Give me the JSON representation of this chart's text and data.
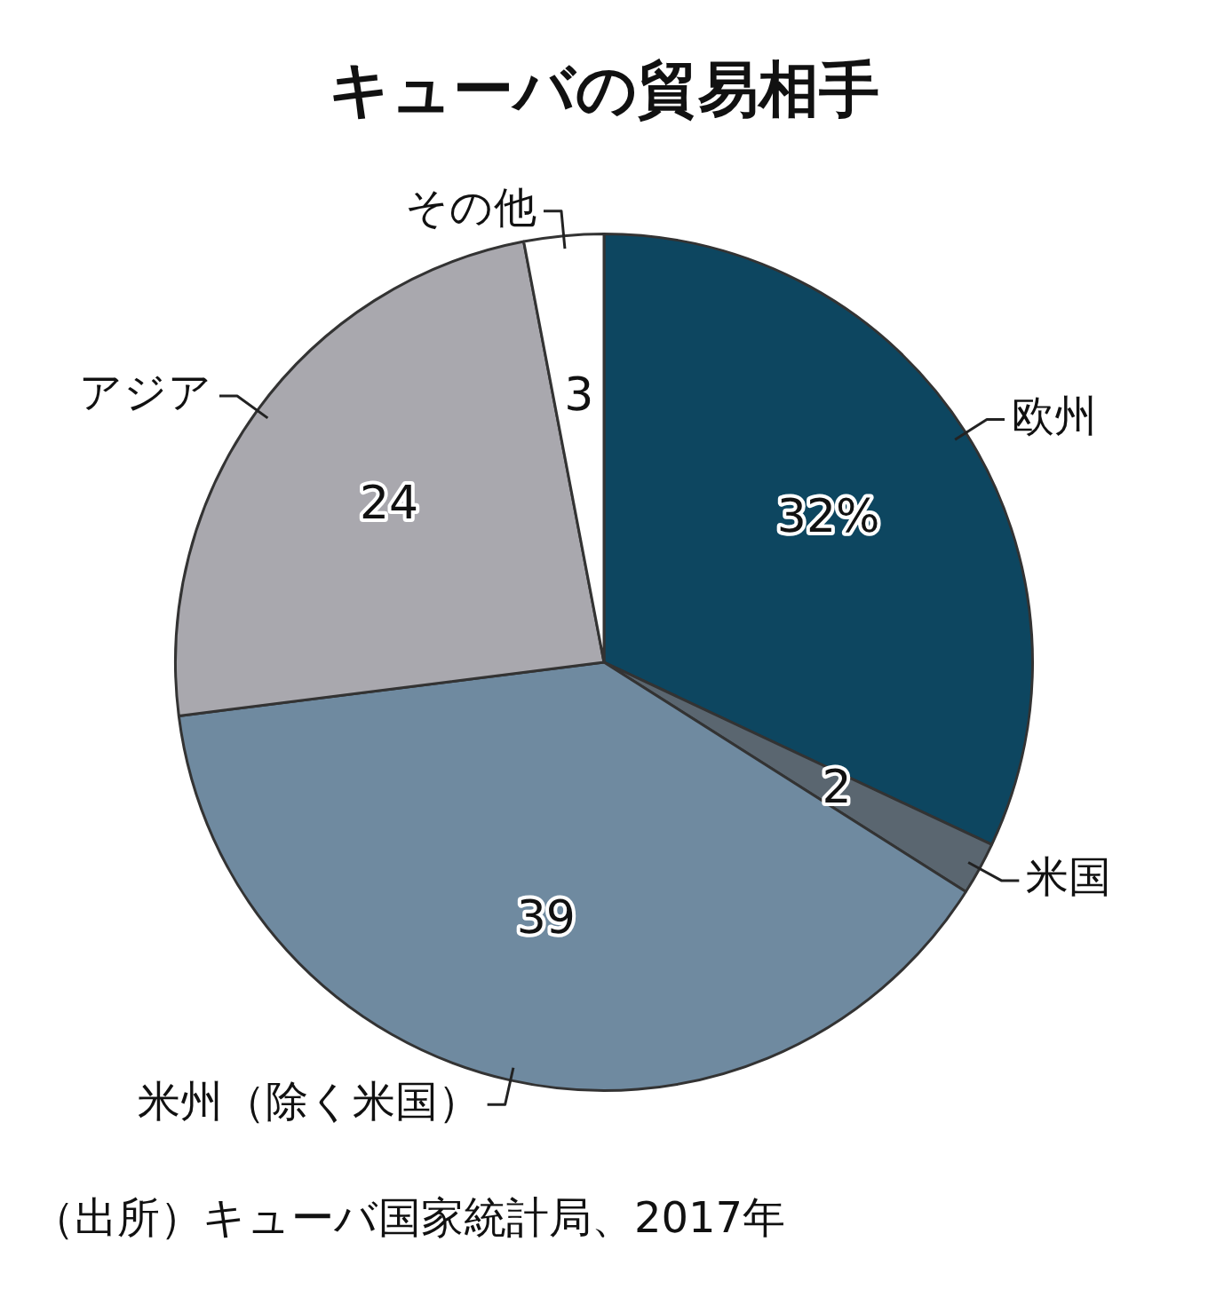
{
  "chart_data": {
    "type": "pie",
    "title": "キューバの貿易相手",
    "categories": [
      "欧州",
      "米国",
      "米州（除く米国）",
      "アジア",
      "その他"
    ],
    "values": [
      32,
      2,
      39,
      24,
      3
    ],
    "value_labels": [
      "32%",
      "2",
      "39",
      "24",
      "3"
    ],
    "colors": [
      "#0d4660",
      "#5a6670",
      "#6f8aa0",
      "#a9a8ae",
      "#ffffff"
    ],
    "annotations": [
      "（出所）キューバ国家統計局、2017年"
    ]
  }
}
